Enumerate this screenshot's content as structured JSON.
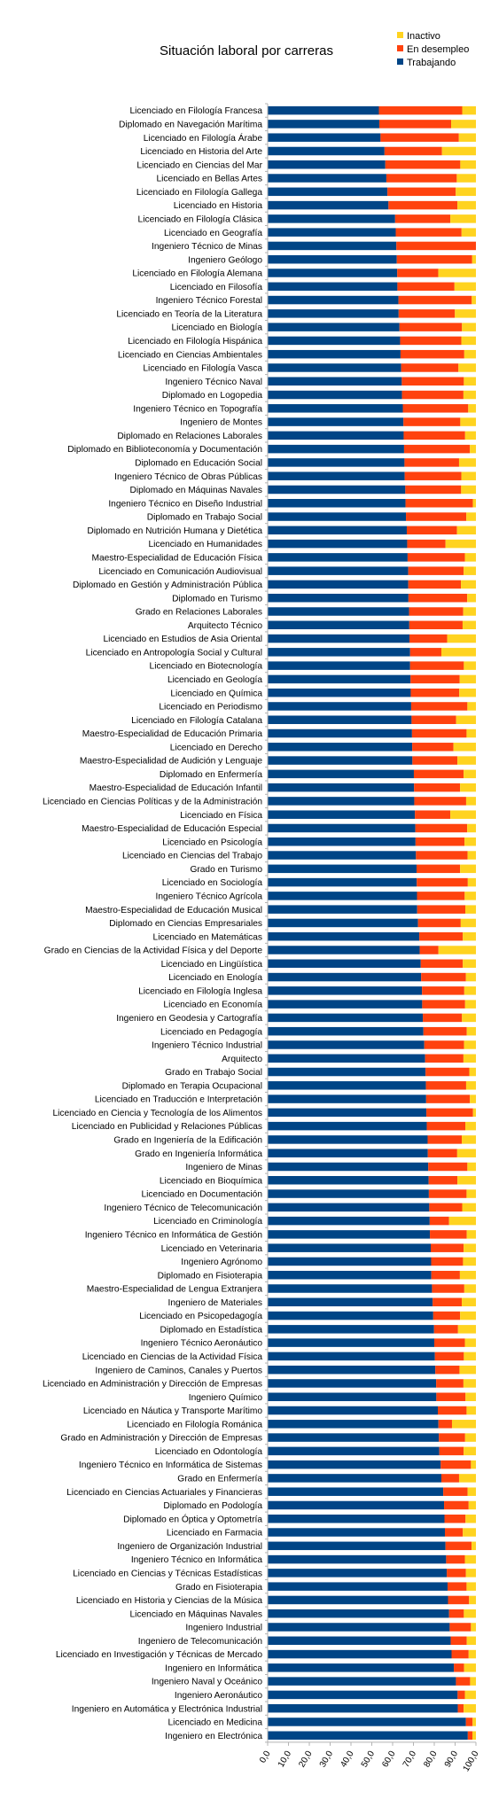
{
  "chart_data": {
    "type": "bar",
    "orientation": "horizontal",
    "stacked": true,
    "title": "Situación laboral por carreras",
    "xlim": [
      0,
      100
    ],
    "xticks": [
      "0,0",
      "10,0",
      "20,0",
      "30,0",
      "40,0",
      "50,0",
      "60,0",
      "70,0",
      "80,0",
      "90,0",
      "100,0"
    ],
    "grid": false,
    "legend_position": "top-right",
    "legend_order": [
      "Inactivo",
      "En desempleo",
      "Trabajando"
    ],
    "categories": [
      "Licenciado en Filología Francesa",
      "Diplomado en Navegación Marítima",
      "Licenciado en Filología Árabe",
      "Licenciado en Historia del Arte",
      "Licenciado en Ciencias del Mar",
      "Licenciado en Bellas Artes",
      "Licenciado en Filología Gallega",
      "Licenciado en Historia",
      "Licenciado en Filología Clásica",
      "Licenciado en Geografía",
      "Ingeniero Técnico de Minas",
      "Ingeniero Geólogo",
      "Licenciado en Filología Alemana",
      "Licenciado en Filosofía",
      "Ingeniero Técnico Forestal",
      "Licenciado en Teoría de la Literatura",
      "Licenciado en Biología",
      "Licenciado en Filología Hispánica",
      "Licenciado en Ciencias Ambientales",
      "Licenciado en Filología Vasca",
      "Ingeniero Técnico Naval",
      "Diplomado en Logopedia",
      "Ingeniero Técnico en Topografía",
      "Ingeniero de Montes",
      "Diplomado en Relaciones Laborales",
      "Diplomado en Biblioteconomía y Documentación",
      "Diplomado en Educación Social",
      "Ingeniero Técnico de Obras Públicas",
      "Diplomado en Máquinas Navales",
      "Ingeniero Técnico en Diseño Industrial",
      "Diplomado en Trabajo Social",
      "Diplomado en Nutrición Humana y Dietética",
      "Licenciado en Humanidades",
      "Maestro-Especialidad de Educación Física",
      "Licenciado en Comunicación Audiovisual",
      "Diplomado en Gestión y Administración Pública",
      "Diplomado en Turismo",
      "Grado en Relaciones Laborales",
      "Arquitecto Técnico",
      "Licenciado en Estudios de Asia Oriental",
      "Licenciado en Antropología Social y Cultural",
      "Licenciado en Biotecnología",
      "Licenciado en Geología",
      "Licenciado en Química",
      "Licenciado en Periodismo",
      "Licenciado en Filología Catalana",
      "Maestro-Especialidad de Educación Primaria",
      "Licenciado en Derecho",
      "Maestro-Especialidad de Audición y Lenguaje",
      "Diplomado en Enfermería",
      "Maestro-Especialidad de Educación Infantil",
      "Licenciado en Ciencias Políticas y de la Administración",
      "Licenciado en Física",
      "Maestro-Especialidad de Educación Especial",
      "Licenciado en Psicología",
      "Licenciado en Ciencias del Trabajo",
      "Grado en Turismo",
      "Licenciado en Sociología",
      "Ingeniero Técnico Agrícola",
      "Maestro-Especialidad de Educación Musical",
      "Diplomado en Ciencias Empresariales",
      "Licenciado en Matemáticas",
      "Grado en Ciencias de la Actividad Física y del Deporte",
      "Licenciado en Lingüística",
      "Licenciado en Enología",
      "Licenciado en Filología Inglesa",
      "Licenciado en Economía",
      "Ingeniero en Geodesia y Cartografía",
      "Licenciado en Pedagogía",
      "Ingeniero Técnico Industrial",
      "Arquitecto",
      "Grado en Trabajo Social",
      "Diplomado en Terapia Ocupacional",
      "Licenciado en Traducción e Interpretación",
      "Licenciado en Ciencia y Tecnología de los Alimentos",
      "Licenciado en Publicidad y Relaciones Públicas",
      "Grado en Ingeniería de la Edificación",
      "Grado en Ingeniería Informática",
      "Ingeniero de Minas",
      "Licenciado en Bioquímica",
      "Licenciado en Documentación",
      "Ingeniero Técnico de Telecomunicación",
      "Licenciado en Criminología",
      "Ingeniero Técnico en Informática de Gestión",
      "Licenciado en Veterinaria",
      "Ingeniero Agrónomo",
      "Diplomado en Fisioterapia",
      "Maestro-Especialidad de Lengua Extranjera",
      "Ingeniero de Materiales",
      "Licenciado en Psicopedagogía",
      "Diplomado en Estadística",
      "Ingeniero Técnico Aeronáutico",
      "Licenciado en Ciencias de la Actividad Física",
      "Ingeniero de Caminos, Canales y Puertos",
      "Licenciado en Administración y Dirección de Empresas",
      "Ingeniero Químico",
      "Licenciado en Náutica y Transporte Marítimo",
      "Licenciado en Filología Románica",
      "Grado en Administración y Dirección de Empresas",
      "Licenciado en Odontología",
      "Ingeniero Técnico en Informática de Sistemas",
      "Grado en Enfermería",
      "Licenciado en Ciencias Actuariales y Financieras",
      "Diplomado en Podología",
      "Diplomado en Óptica y Optometría",
      "Licenciado en Farmacia",
      "Ingeniero de Organización Industrial",
      "Ingeniero Técnico en Informática",
      "Licenciado en Ciencias y Técnicas Estadísticas",
      "Grado en Fisioterapia",
      "Licenciado en Historia y Ciencias de la Música",
      "Licenciado en Máquinas Navales",
      "Ingeniero Industrial",
      "Ingeniero de Telecomunicación",
      "Licenciado en Investigación y Técnicas de Mercado",
      "Ingeniero en Informática",
      "Ingeniero Naval y Oceánico",
      "Ingeniero Aeronáutico",
      "Ingeniero en Automática y Electrónica Industrial",
      "Licenciado en Medicina",
      "Ingeniero en Electrónica"
    ],
    "series": [
      {
        "name": "Trabajando",
        "color": "#004586",
        "values": [
          53.4,
          53.6,
          54.2,
          56.1,
          56.5,
          57.0,
          57.5,
          58.0,
          61.2,
          61.5,
          61.8,
          62.0,
          62.2,
          62.3,
          62.8,
          62.9,
          63.3,
          63.6,
          63.8,
          64.1,
          64.4,
          64.5,
          64.9,
          65.2,
          65.3,
          65.5,
          65.7,
          65.8,
          66.1,
          66.2,
          66.4,
          66.8,
          67.0,
          67.2,
          67.5,
          67.5,
          67.6,
          67.9,
          68.0,
          68.1,
          68.4,
          68.4,
          68.6,
          68.7,
          68.9,
          69.1,
          69.3,
          69.4,
          69.5,
          70.2,
          70.3,
          70.4,
          70.7,
          70.9,
          71.0,
          71.2,
          71.5,
          71.6,
          71.7,
          71.8,
          72.2,
          72.8,
          73.0,
          73.5,
          73.7,
          74.1,
          74.2,
          74.5,
          74.8,
          75.2,
          75.6,
          75.8,
          76.0,
          76.1,
          76.2,
          76.4,
          76.8,
          76.9,
          77.1,
          77.3,
          77.4,
          77.6,
          77.8,
          77.9,
          78.3,
          78.5,
          78.6,
          78.9,
          79.2,
          79.5,
          79.9,
          80.0,
          80.3,
          80.5,
          80.9,
          81.0,
          81.7,
          82.0,
          82.2,
          82.4,
          83.1,
          83.4,
          84.3,
          84.7,
          84.9,
          85.1,
          85.4,
          85.7,
          86.0,
          86.4,
          86.6,
          87.1,
          87.4,
          87.9,
          88.3,
          89.4,
          90.4,
          91.2,
          91.3,
          95.2,
          96.1
        ]
      },
      {
        "name": "En desempleo",
        "color": "#ff420e",
        "values": [
          40.0,
          34.5,
          37.6,
          27.6,
          36.0,
          33.8,
          32.8,
          33.1,
          26.5,
          31.6,
          39.6,
          36.2,
          19.7,
          27.4,
          35.2,
          27.0,
          30.0,
          29.4,
          30.6,
          27.5,
          29.8,
          29.5,
          31.4,
          27.3,
          29.5,
          31.6,
          26.2,
          27.2,
          26.8,
          32.3,
          29.0,
          24.1,
          18.4,
          27.5,
          26.6,
          25.3,
          28.2,
          26.0,
          25.6,
          18.1,
          15.0,
          25.8,
          23.6,
          23.3,
          27.0,
          21.4,
          26.2,
          19.8,
          21.6,
          23.9,
          22.1,
          24.9,
          17.0,
          24.9,
          23.5,
          24.8,
          20.9,
          24.5,
          22.9,
          23.1,
          20.5,
          20.9,
          9.0,
          20.2,
          21.5,
          20.3,
          20.6,
          18.8,
          20.8,
          19.1,
          18.4,
          21.0,
          19.3,
          21.0,
          22.4,
          18.5,
          16.4,
          14.1,
          18.8,
          13.8,
          18.1,
          15.8,
          9.3,
          17.7,
          15.8,
          15.3,
          13.7,
          15.5,
          14.0,
          12.9,
          11.5,
          14.7,
          13.9,
          11.6,
          13.1,
          14.0,
          13.8,
          6.5,
          12.6,
          11.7,
          14.5,
          8.5,
          11.7,
          11.8,
          10.1,
          8.6,
          12.5,
          9.0,
          9.2,
          9.1,
          10.1,
          7.1,
          10.2,
          7.7,
          8.2,
          4.9,
          6.8,
          3.5,
          2.8,
          3.2,
          2.2
        ]
      },
      {
        "name": "Inactivo",
        "color": "#ffd320",
        "values": [
          6.6,
          11.9,
          8.2,
          16.3,
          7.5,
          9.2,
          9.7,
          8.9,
          12.3,
          6.9,
          -1.4,
          1.8,
          18.1,
          10.3,
          2.0,
          10.1,
          6.7,
          7.0,
          5.6,
          8.4,
          5.8,
          6.0,
          3.7,
          7.5,
          5.2,
          2.9,
          8.1,
          7.0,
          7.1,
          1.5,
          4.6,
          9.1,
          14.6,
          5.3,
          5.9,
          7.2,
          4.2,
          6.1,
          6.4,
          13.8,
          16.6,
          5.8,
          7.8,
          8.0,
          4.1,
          9.5,
          4.5,
          10.8,
          8.9,
          5.9,
          7.6,
          4.7,
          12.3,
          4.2,
          5.5,
          4.0,
          7.6,
          3.9,
          5.4,
          5.1,
          7.3,
          6.3,
          18.0,
          6.3,
          4.8,
          5.6,
          5.2,
          6.7,
          4.4,
          5.7,
          6.0,
          3.2,
          4.7,
          2.9,
          1.4,
          5.1,
          6.8,
          9.0,
          4.1,
          8.9,
          4.5,
          6.6,
          12.9,
          4.4,
          5.9,
          6.2,
          7.7,
          5.6,
          6.8,
          7.6,
          8.6,
          5.3,
          5.8,
          7.9,
          6.0,
          5.0,
          4.5,
          11.5,
          5.2,
          5.9,
          2.4,
          8.1,
          4.0,
          3.5,
          5.0,
          6.3,
          2.1,
          5.3,
          4.8,
          4.5,
          3.3,
          5.8,
          2.4,
          4.4,
          3.5,
          5.7,
          2.8,
          5.3,
          5.9,
          1.6,
          1.7
        ]
      }
    ]
  }
}
